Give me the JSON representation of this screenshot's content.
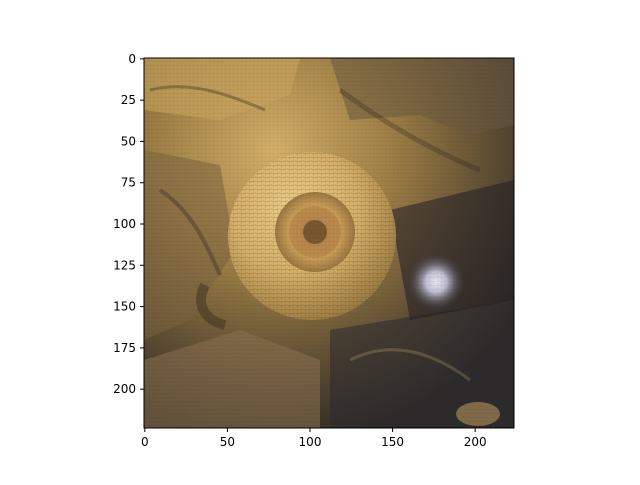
{
  "chart_data": {
    "type": "image",
    "title": "",
    "xlabel": "",
    "ylabel": "",
    "xlim": [
      -0.5,
      223.5
    ],
    "ylim": [
      223.5,
      -0.5
    ],
    "y_inverted": true,
    "grid": false,
    "x_ticks": [
      0,
      50,
      100,
      150,
      200
    ],
    "y_ticks": [
      0,
      25,
      50,
      75,
      100,
      125,
      150,
      175,
      200
    ],
    "image_content": "Stylized close-up of a golden, wrinkled textured surface with a round raised disc near the center containing an inner ring and hub; a bright glossy spot lies to the right of the disc and darker shadowed folds surround it.",
    "palette": {
      "highlight": "#e6c47c",
      "midtone": "#a48446",
      "shadow": "#3b3326",
      "dark": "#1f1d24",
      "glint": "#c8c4dc"
    }
  }
}
